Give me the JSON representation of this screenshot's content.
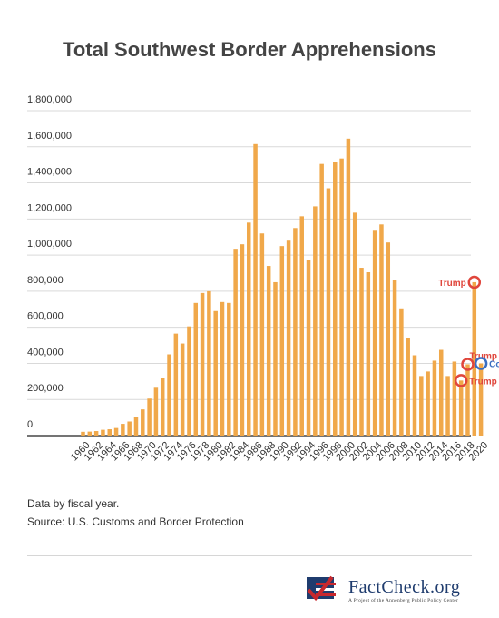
{
  "chart_data": {
    "type": "bar",
    "title": "Total Southwest Border Apprehensions",
    "xlabel": "",
    "ylabel": "",
    "ylim": [
      0,
      1800000
    ],
    "yticks": [
      "0",
      "200,000",
      "400,000",
      "600,000",
      "800,000",
      "1,000,000",
      "1,200,000",
      "1,400,000",
      "1,600,000",
      "1,800,000"
    ],
    "grid": true,
    "bar_color": "#f0a84a",
    "x_tick_labels": [
      "1960",
      "1962",
      "1964",
      "1966",
      "1968",
      "1970",
      "1972",
      "1974",
      "1976",
      "1978",
      "1980",
      "1982",
      "1984",
      "1986",
      "1988",
      "1990",
      "1992",
      "1994",
      "1996",
      "1998",
      "2000",
      "2002",
      "2004",
      "2006",
      "2008",
      "2010",
      "2012",
      "2014",
      "2016",
      "2018",
      "2020"
    ],
    "categories": [
      "1960",
      "1961",
      "1962",
      "1963",
      "1964",
      "1965",
      "1966",
      "1967",
      "1968",
      "1969",
      "1970",
      "1971",
      "1972",
      "1973",
      "1974",
      "1975",
      "1976",
      "1977",
      "1978",
      "1979",
      "1980",
      "1981",
      "1982",
      "1983",
      "1984",
      "1985",
      "1986",
      "1987",
      "1988",
      "1989",
      "1990",
      "1991",
      "1992",
      "1993",
      "1994",
      "1995",
      "1996",
      "1997",
      "1998",
      "1999",
      "2000",
      "2001",
      "2002",
      "2003",
      "2004",
      "2005",
      "2006",
      "2007",
      "2008",
      "2009",
      "2010",
      "2011",
      "2012",
      "2013",
      "2014",
      "2015",
      "2016",
      "2017",
      "2018",
      "2019",
      "2020"
    ],
    "values": [
      21000,
      22000,
      25000,
      32000,
      35000,
      42000,
      65000,
      78000,
      105000,
      145000,
      205000,
      265000,
      320000,
      450000,
      565000,
      510000,
      605000,
      735000,
      790000,
      800000,
      690000,
      740000,
      735000,
      1035000,
      1060000,
      1180000,
      1615000,
      1120000,
      940000,
      850000,
      1050000,
      1080000,
      1150000,
      1215000,
      975000,
      1270000,
      1505000,
      1370000,
      1515000,
      1535000,
      1645000,
      1235000,
      930000,
      905000,
      1140000,
      1170000,
      1070000,
      860000,
      705000,
      540000,
      445000,
      330000,
      355000,
      415000,
      475000,
      330000,
      410000,
      305000,
      395000,
      850000,
      400000
    ],
    "annotations": [
      {
        "text": "Trump",
        "year": "2019",
        "value": 850000,
        "color": "#e0463c",
        "side": "left"
      },
      {
        "text": "Trump",
        "year": "2018",
        "value": 395000,
        "color": "#e0463c",
        "side": "above"
      },
      {
        "text": "Trump",
        "year": "2017",
        "value": 305000,
        "color": "#e0463c",
        "side": "right"
      },
      {
        "text": "Covid",
        "year": "2020",
        "value": 400000,
        "color": "#3a6ec2",
        "side": "right"
      }
    ]
  },
  "notes": {
    "line1": "Data by fiscal year.",
    "line2": "Source: U.S. Customs and Border Protection"
  },
  "logo": {
    "name": "FactCheck.org",
    "tagline": "A Project of the Annenberg Public Policy Center",
    "colors": {
      "navy": "#1f3c6e",
      "red": "#c8282e"
    }
  }
}
